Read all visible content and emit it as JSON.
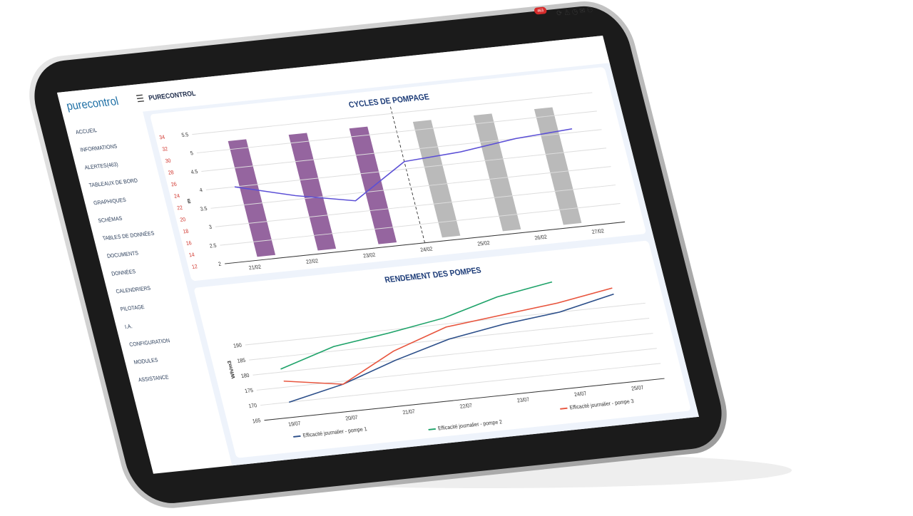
{
  "header": {
    "logo": "purecontrol",
    "site": "PURECONTROL",
    "badge": "463"
  },
  "sidebar": {
    "items": [
      "ACCUEIL",
      "INFORMATIONS",
      "ALERTES(463)",
      "TABLEAUX DE BORD",
      "GRAPHIQUES",
      "SCHÉMAS",
      "TABLES DE DONNÉES",
      "DOCUMENTS",
      "DONNÉES",
      "CALENDRIERS",
      "PILOTAGE",
      "I.A.",
      "CONFIGURATION",
      "MODULES",
      "ASSISTANCE"
    ]
  },
  "chart_data": [
    {
      "type": "line",
      "title": "CYCLES DE POMPAGE",
      "y_label": "m",
      "categories": [
        "21/02",
        "22/02",
        "23/02",
        "24/02",
        "25/02",
        "26/02",
        "27/02"
      ],
      "ylim": [
        2,
        5.5
      ],
      "yticks": [
        2,
        2.5,
        3,
        3.5,
        4,
        4.5,
        5,
        5.5
      ],
      "y2lim": [
        12,
        34
      ],
      "y2ticks": [
        12,
        14,
        16,
        18,
        20,
        22,
        24,
        26,
        28,
        30,
        32,
        34
      ],
      "y2color": "#d0342c",
      "series": [
        {
          "color": "#5b4fd6",
          "values": [
            4.0,
            3.6,
            3.3,
            4.2,
            4.3,
            4.5,
            4.6
          ]
        }
      ],
      "grid": true
    },
    {
      "type": "line",
      "title": "RENDEMENT DES POMPES",
      "y_label": "Wh/m3",
      "categories": [
        "19/07",
        "20/07",
        "21/07",
        "22/07",
        "23/07",
        "24/07",
        "25/07"
      ],
      "ylim": [
        165,
        200
      ],
      "yticks": [
        165,
        170,
        175,
        180,
        185,
        190
      ],
      "grid": true,
      "series": [
        {
          "name": "Efficacité journalier - pompe 1",
          "color": "#2c4f8a",
          "values": [
            170,
            174,
            180,
            185,
            188,
            190,
            194
          ]
        },
        {
          "name": "Efficacité journalier - pompe 2",
          "color": "#1fa36a",
          "values": [
            181,
            186.5,
            189,
            192,
            197,
            200,
            null
          ]
        },
        {
          "name": "Efficacité journalier - pompe 3",
          "color": "#e8553e",
          "values": [
            177,
            174,
            183,
            189,
            191,
            193,
            196
          ]
        }
      ]
    }
  ]
}
